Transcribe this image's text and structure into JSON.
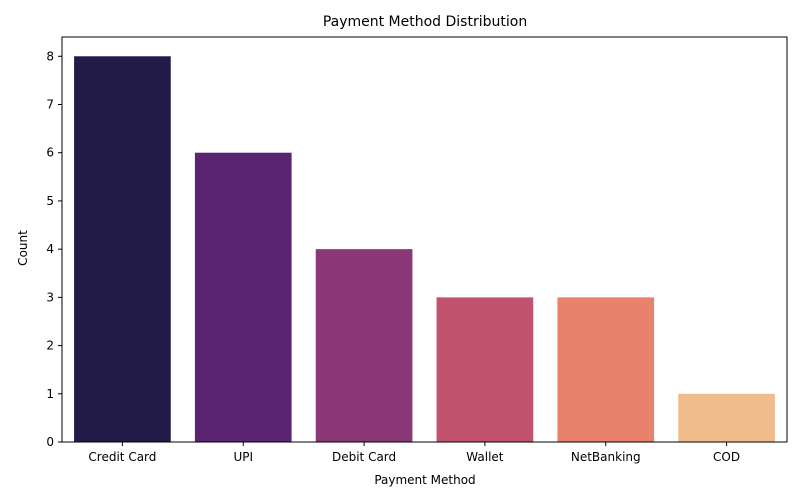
{
  "chart_data": {
    "type": "bar",
    "title": "Payment Method Distribution",
    "xlabel": "Payment Method",
    "ylabel": "Count",
    "categories": [
      "Credit Card",
      "UPI",
      "Debit Card",
      "Wallet",
      "NetBanking",
      "COD"
    ],
    "values": [
      8,
      6,
      4,
      3,
      3,
      1
    ],
    "colors": [
      "#221a47",
      "#5a2473",
      "#8b3878",
      "#c1536f",
      "#e8826c",
      "#f0bc8c"
    ],
    "ylim": [
      0,
      8.4
    ],
    "yticks": [
      0,
      1,
      2,
      3,
      4,
      5,
      6,
      7,
      8
    ],
    "grid": false,
    "legend": "none"
  }
}
